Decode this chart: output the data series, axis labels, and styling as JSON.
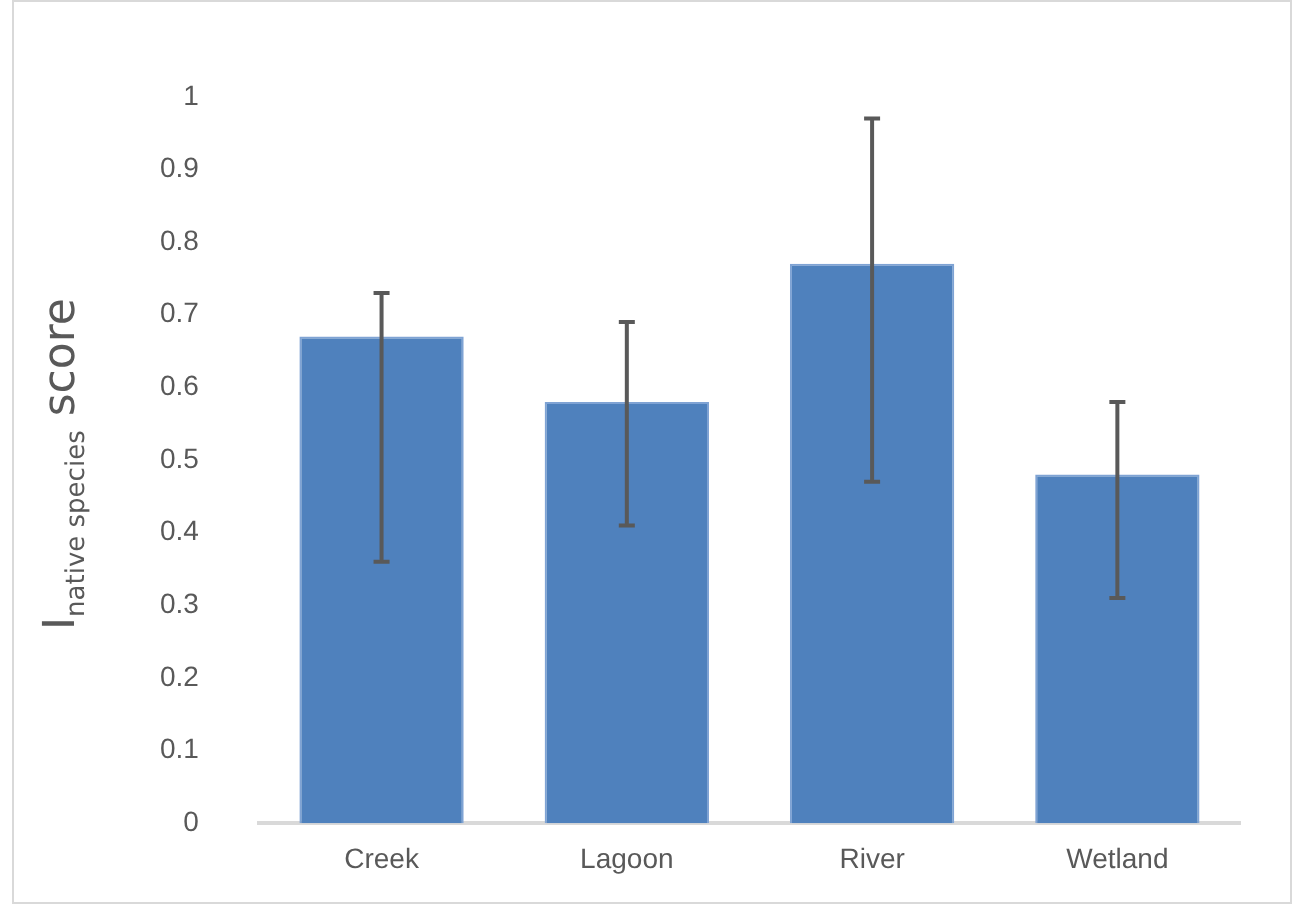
{
  "chart_data": {
    "type": "bar",
    "ylabel": "I$_{native species}$ score",
    "categories": [
      "Creek",
      "Lagoon",
      "River",
      "Wetland"
    ],
    "values": [
      0.67,
      0.58,
      0.77,
      0.48
    ],
    "errors": [
      [
        0.36,
        0.73
      ],
      [
        0.41,
        0.69
      ],
      [
        0.47,
        0.97
      ],
      [
        0.31,
        0.58
      ]
    ],
    "color": "#4f81bd",
    "ylim": [
      0,
      1
    ],
    "yticks": [
      0,
      0.1,
      0.2,
      0.3,
      0.4,
      0.5,
      0.6,
      0.7,
      0.8,
      0.9,
      1
    ],
    "grid": false,
    "legend": false
  }
}
